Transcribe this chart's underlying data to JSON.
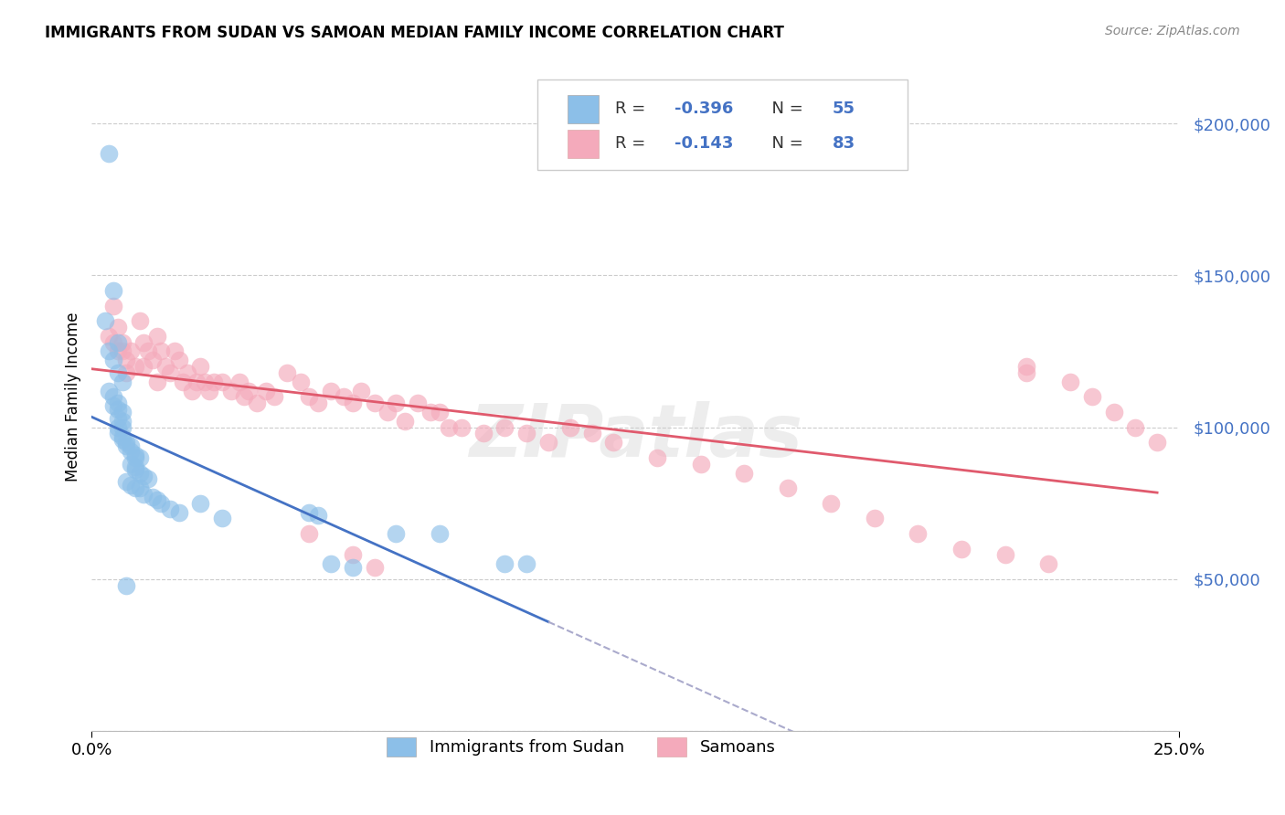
{
  "title": "IMMIGRANTS FROM SUDAN VS SAMOAN MEDIAN FAMILY INCOME CORRELATION CHART",
  "source": "Source: ZipAtlas.com",
  "ylabel": "Median Family Income",
  "xlim": [
    0.0,
    0.25
  ],
  "ylim": [
    0,
    220000
  ],
  "color_blue": "#8CBFE8",
  "color_pink": "#F4AABB",
  "color_blue_line": "#4472C4",
  "color_pink_line": "#E05A6D",
  "color_dashed_line": "#AAAACC",
  "watermark": "ZIPatlas",
  "legend_r1": "-0.396",
  "legend_n1": "55",
  "legend_r2": "-0.143",
  "legend_n2": "83",
  "blue_x": [
    0.004,
    0.005,
    0.003,
    0.006,
    0.004,
    0.005,
    0.006,
    0.007,
    0.004,
    0.005,
    0.006,
    0.005,
    0.006,
    0.007,
    0.006,
    0.007,
    0.006,
    0.007,
    0.006,
    0.007,
    0.007,
    0.008,
    0.008,
    0.009,
    0.009,
    0.01,
    0.01,
    0.011,
    0.009,
    0.01,
    0.01,
    0.011,
    0.012,
    0.013,
    0.008,
    0.009,
    0.01,
    0.011,
    0.012,
    0.014,
    0.015,
    0.016,
    0.018,
    0.02,
    0.025,
    0.03,
    0.05,
    0.052,
    0.055,
    0.06,
    0.07,
    0.08,
    0.095,
    0.1,
    0.008
  ],
  "blue_y": [
    190000,
    145000,
    135000,
    128000,
    125000,
    122000,
    118000,
    115000,
    112000,
    110000,
    108000,
    107000,
    106000,
    105000,
    103000,
    102000,
    100000,
    100000,
    98000,
    97000,
    96000,
    95000,
    94000,
    94000,
    92000,
    91000,
    90000,
    90000,
    88000,
    87000,
    86000,
    85000,
    84000,
    83000,
    82000,
    81000,
    80000,
    80000,
    78000,
    77000,
    76000,
    75000,
    73000,
    72000,
    75000,
    70000,
    72000,
    71000,
    55000,
    54000,
    65000,
    65000,
    55000,
    55000,
    48000
  ],
  "pink_x": [
    0.004,
    0.005,
    0.005,
    0.006,
    0.006,
    0.007,
    0.007,
    0.008,
    0.008,
    0.009,
    0.01,
    0.011,
    0.012,
    0.012,
    0.013,
    0.014,
    0.015,
    0.015,
    0.016,
    0.017,
    0.018,
    0.019,
    0.02,
    0.021,
    0.022,
    0.023,
    0.024,
    0.025,
    0.026,
    0.027,
    0.028,
    0.03,
    0.032,
    0.034,
    0.035,
    0.036,
    0.038,
    0.04,
    0.042,
    0.045,
    0.048,
    0.05,
    0.052,
    0.055,
    0.058,
    0.06,
    0.062,
    0.065,
    0.068,
    0.07,
    0.072,
    0.075,
    0.078,
    0.08,
    0.082,
    0.085,
    0.09,
    0.095,
    0.1,
    0.105,
    0.11,
    0.115,
    0.12,
    0.13,
    0.14,
    0.15,
    0.16,
    0.17,
    0.18,
    0.19,
    0.2,
    0.21,
    0.215,
    0.215,
    0.22,
    0.225,
    0.23,
    0.235,
    0.24,
    0.245,
    0.05,
    0.06,
    0.065
  ],
  "pink_y": [
    130000,
    128000,
    140000,
    125000,
    133000,
    125000,
    128000,
    122000,
    118000,
    125000,
    120000,
    135000,
    128000,
    120000,
    125000,
    122000,
    130000,
    115000,
    125000,
    120000,
    118000,
    125000,
    122000,
    115000,
    118000,
    112000,
    115000,
    120000,
    115000,
    112000,
    115000,
    115000,
    112000,
    115000,
    110000,
    112000,
    108000,
    112000,
    110000,
    118000,
    115000,
    110000,
    108000,
    112000,
    110000,
    108000,
    112000,
    108000,
    105000,
    108000,
    102000,
    108000,
    105000,
    105000,
    100000,
    100000,
    98000,
    100000,
    98000,
    95000,
    100000,
    98000,
    95000,
    90000,
    88000,
    85000,
    80000,
    75000,
    70000,
    65000,
    60000,
    58000,
    120000,
    118000,
    55000,
    115000,
    110000,
    105000,
    100000,
    95000,
    65000,
    58000,
    54000
  ]
}
